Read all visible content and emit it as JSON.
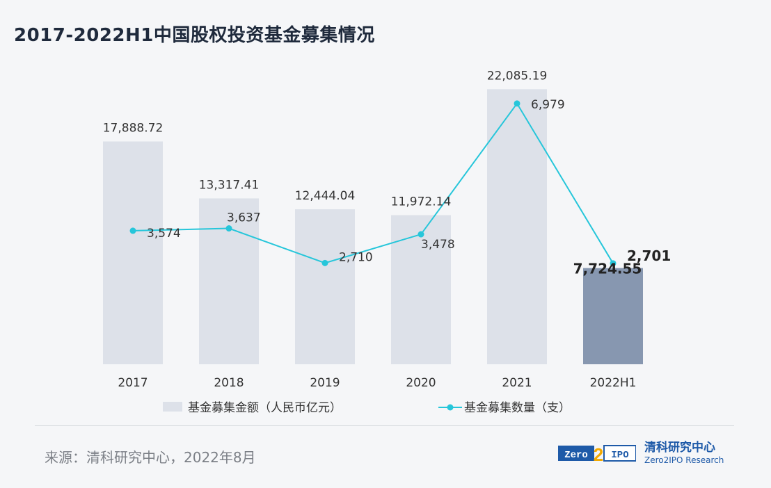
{
  "title": "2017-2022H1中国股权投资基金募集情况",
  "source": "来源：清科研究中心，2022年8月",
  "logo": {
    "mark_left": "Zero",
    "mark_mid": "2",
    "mark_right": "IPO",
    "name_cn": "清科研究中心",
    "name_en": "Zero2IPO Research"
  },
  "colors": {
    "bar": "#dde1e9",
    "bar_highlight": "#8797b0",
    "line": "#26c6da",
    "text": "#333333",
    "logo_blue": "#1e5aa8",
    "logo_gold": "#f2a900"
  },
  "chart_data": {
    "type": "bar+line",
    "categories": [
      "2017",
      "2018",
      "2019",
      "2020",
      "2021",
      "2022H1"
    ],
    "series": [
      {
        "name": "基金募集金额（人民币亿元）",
        "type": "bar",
        "axis": "left",
        "values": [
          17888.72,
          13317.41,
          12444.04,
          11972.14,
          22085.19,
          7724.55
        ],
        "labels": [
          "17,888.72",
          "13,317.41",
          "12,444.04",
          "11,972.14",
          "22,085.19",
          "7,724.55"
        ]
      },
      {
        "name": "基金募集数量（支）",
        "type": "line",
        "axis": "right",
        "values": [
          3574,
          3637,
          2710,
          3478,
          6979,
          2701
        ],
        "labels": [
          "3,574",
          "3,637",
          "2,710",
          "3,478",
          "6,979",
          "2,701"
        ]
      }
    ],
    "highlight_index": 5,
    "bar_axis_range": [
      0,
      24000
    ],
    "line_axis_range": [
      0,
      8000
    ],
    "legend": "bottom",
    "grid": false
  }
}
